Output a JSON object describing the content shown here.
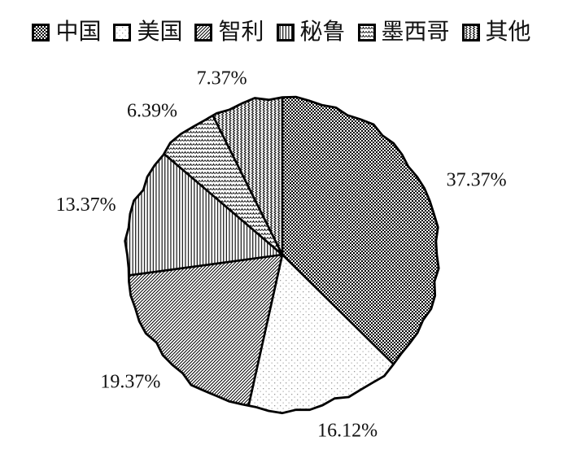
{
  "chart_data": {
    "type": "pie",
    "title": "",
    "legend_position": "top",
    "unit": "%",
    "categories": [
      "中国",
      "美国",
      "智利",
      "秘鲁",
      "墨西哥",
      "其他"
    ],
    "values": [
      37.37,
      16.12,
      19.37,
      13.37,
      6.39,
      7.37
    ],
    "labels": [
      "37.37%",
      "16.12%",
      "19.37%",
      "13.37%",
      "6.39%",
      "7.37%"
    ],
    "patterns": [
      "dense-dot-grid",
      "sparse-dots",
      "diagonal-hatch",
      "vertical-lines",
      "horizontal-waves",
      "vertical-zigzag"
    ],
    "start_angle_deg": 0,
    "direction": "clockwise",
    "stroke_color": "#000000",
    "background_color": "#ffffff"
  }
}
